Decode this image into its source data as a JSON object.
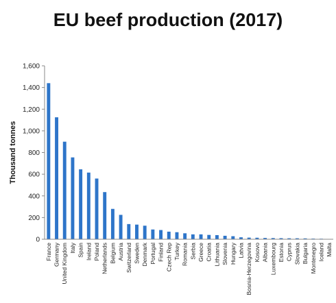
{
  "chart_data": {
    "type": "bar",
    "title": "EU beef production (2017)",
    "ylabel": "Thousand tonnes",
    "xlabel": "",
    "ylim": [
      0,
      1600
    ],
    "yticks": [
      0,
      200,
      400,
      600,
      800,
      1000,
      1200,
      1400,
      1600
    ],
    "ytick_labels": [
      "0",
      "200",
      "400",
      "600",
      "800",
      "1,000",
      "1,200",
      "1,400",
      "1,600"
    ],
    "grid": false,
    "legend": "none",
    "bar_color": "#2E75C9",
    "categories": [
      "France",
      "Germany",
      "United Kingdom",
      "Italy",
      "Spain",
      "Ireland",
      "Poland",
      "Netherlands",
      "Belgium",
      "Austria",
      "Switzerland",
      "Sweden",
      "Denmark",
      "Portugal",
      "Finland",
      "Czech Rep",
      "Turkey",
      "Romania",
      "Serbia",
      "Greece",
      "Croatia",
      "Lithuania",
      "Slovenia",
      "Hungary",
      "Latvia",
      "Bosnia-Herzegovina",
      "Kosovo",
      "Albania",
      "Luxembourg",
      "Estonia",
      "Cyprus",
      "Slovakia",
      "Bulgaria",
      "Montenegro",
      "Iceland",
      "Malta"
    ],
    "values": [
      1440,
      1125,
      900,
      755,
      645,
      615,
      560,
      435,
      280,
      225,
      140,
      135,
      125,
      90,
      85,
      70,
      65,
      55,
      45,
      45,
      40,
      38,
      32,
      28,
      18,
      15,
      14,
      12,
      11,
      10,
      9,
      9,
      8,
      6,
      5,
      3
    ]
  }
}
